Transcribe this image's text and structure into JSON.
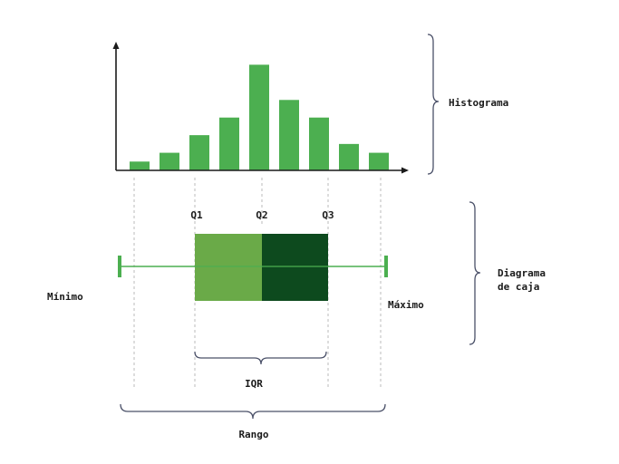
{
  "labels": {
    "histogram": "Histograma",
    "boxplot_line1": "Diagrama",
    "boxplot_line2": "de caja",
    "q1": "Q1",
    "q2": "Q2",
    "q3": "Q3",
    "minimum": "Mínimo",
    "maximum": "Máximo",
    "iqr": "IQR",
    "range": "Rango"
  },
  "colors": {
    "bar": "#4caf50",
    "box_lower": "#6aaa48",
    "box_upper": "#0d4a1e",
    "whisker": "#4caf50",
    "axis": "#1a1a1a",
    "guide": "#bbbbbb",
    "bracket": "#4a5068"
  },
  "chart_data": {
    "type": "bar",
    "values": [
      1,
      2,
      4,
      6,
      12,
      8,
      6,
      3,
      2
    ],
    "ylim": [
      0,
      14
    ],
    "grid": false
  }
}
